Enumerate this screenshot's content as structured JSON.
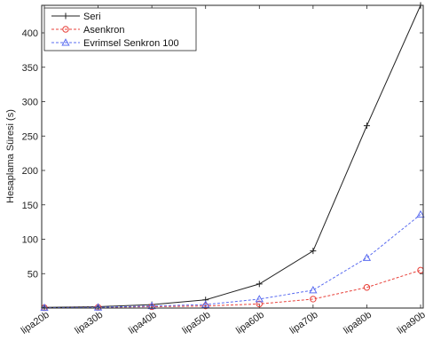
{
  "chart_data": {
    "type": "line",
    "title": "",
    "xlabel": "",
    "ylabel": "Hesaplama Süresi (s)",
    "categories": [
      "lipa20b",
      "lipa30b",
      "lipa40b",
      "lipa50b",
      "lipa60b",
      "lipa70b",
      "lipa80b",
      "lipa90b"
    ],
    "ylim": [
      0,
      440
    ],
    "yticks": [
      50,
      100,
      150,
      200,
      250,
      300,
      350,
      400
    ],
    "grid": false,
    "legend_position": "top-left",
    "series": [
      {
        "name": "Seri",
        "values": [
          1,
          2,
          5,
          12,
          35,
          83,
          265,
          440
        ],
        "color": "#222222",
        "marker": "plus",
        "line_style": "solid"
      },
      {
        "name": "Asenkron",
        "values": [
          0.5,
          1,
          2,
          3,
          6,
          13,
          30,
          55
        ],
        "color": "#e8413a",
        "marker": "circle",
        "line_style": "dashed"
      },
      {
        "name": "Evrimsel Senkron 100",
        "values": [
          0.5,
          1,
          3,
          5,
          13,
          26,
          73,
          136
        ],
        "color": "#5a6cf0",
        "marker": "triangle",
        "line_style": "dashed"
      }
    ]
  }
}
